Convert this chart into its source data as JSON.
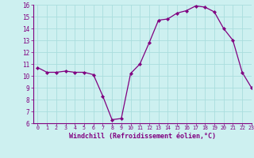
{
  "x": [
    0,
    1,
    2,
    3,
    4,
    5,
    6,
    7,
    8,
    9,
    10,
    11,
    12,
    13,
    14,
    15,
    16,
    17,
    18,
    19,
    20,
    21,
    22,
    23
  ],
  "y": [
    10.7,
    10.3,
    10.3,
    10.4,
    10.3,
    10.3,
    10.1,
    8.3,
    6.3,
    6.4,
    10.2,
    11.0,
    12.8,
    14.7,
    14.8,
    15.3,
    15.5,
    15.9,
    15.8,
    15.4,
    14.0,
    13.0,
    10.3,
    9.0
  ],
  "line_color": "#800080",
  "marker": "D",
  "marker_size": 2.2,
  "bg_color": "#cdf0f0",
  "grid_color": "#aadddd",
  "xlabel": "Windchill (Refroidissement éolien,°C)",
  "xlabel_color": "#800080",
  "tick_color": "#800080",
  "axis_color": "#800080",
  "ylim": [
    6,
    16
  ],
  "xlim": [
    -0.5,
    23
  ],
  "yticks": [
    6,
    7,
    8,
    9,
    10,
    11,
    12,
    13,
    14,
    15,
    16
  ],
  "xticks": [
    0,
    1,
    2,
    3,
    4,
    5,
    6,
    7,
    8,
    9,
    10,
    11,
    12,
    13,
    14,
    15,
    16,
    17,
    18,
    19,
    20,
    21,
    22,
    23
  ],
  "xtick_labels": [
    "0",
    "1",
    "2",
    "3",
    "4",
    "5",
    "6",
    "7",
    "8",
    "9",
    "10",
    "11",
    "12",
    "13",
    "14",
    "15",
    "16",
    "17",
    "18",
    "19",
    "20",
    "21",
    "22",
    "23"
  ]
}
